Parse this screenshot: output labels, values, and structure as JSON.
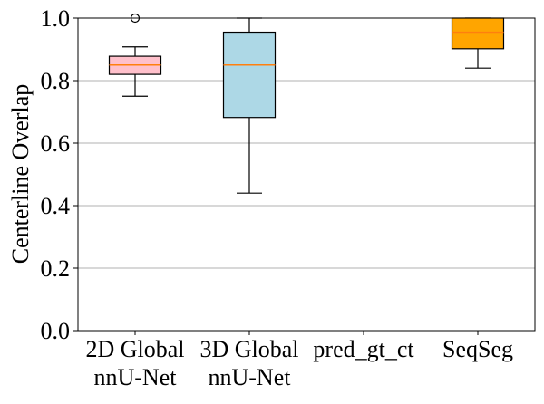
{
  "chart_data": {
    "type": "boxplot",
    "title": "",
    "xlabel": "",
    "ylabel": "Centerline Overlap",
    "ylim": [
      0,
      1.0
    ],
    "yticks": [
      "0.0",
      "0.2",
      "0.4",
      "0.6",
      "0.8",
      "1.0"
    ],
    "grid": "horizontal",
    "categories": [
      {
        "lines": [
          "2D Global",
          "nnU-Net"
        ]
      },
      {
        "lines": [
          "3D Global",
          "nnU-Net"
        ]
      },
      {
        "lines": [
          "pred_gt_ct"
        ]
      },
      {
        "lines": [
          "SeqSeg"
        ]
      }
    ],
    "boxes": [
      {
        "whisker_low": 0.75,
        "q1": 0.82,
        "median": 0.85,
        "q3": 0.878,
        "whisker_high": 0.908,
        "outliers": [
          1.0
        ],
        "fill": "#ffc0cb",
        "median_color": "#ff7f0e"
      },
      {
        "whisker_low": 0.44,
        "q1": 0.682,
        "median": 0.85,
        "q3": 0.955,
        "whisker_high": 1.0,
        "outliers": [],
        "fill": "#add8e6",
        "median_color": "#ff7f0e"
      },
      null,
      {
        "whisker_low": 0.84,
        "q1": 0.902,
        "median": 0.955,
        "q3": 1.0,
        "whisker_high": 1.0,
        "outliers": [],
        "fill": "#ffa500",
        "median_color": "#ff7f0e"
      }
    ]
  }
}
